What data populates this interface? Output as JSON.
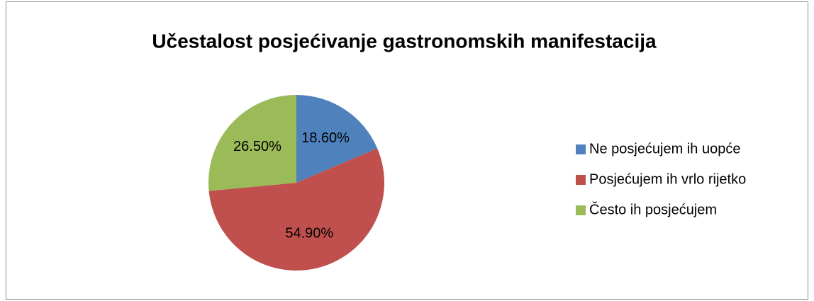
{
  "chart_data": {
    "type": "pie",
    "title": "Učestalost posjećivanje gastronomskih manifestacija",
    "categories": [
      "Ne posjećujem ih uopće",
      "Posjećujem ih vrlo rijetko",
      "Često ih posjećujem"
    ],
    "values": [
      18.6,
      54.9,
      26.5
    ],
    "value_labels": [
      "18.60%",
      "54.90%",
      "26.50%"
    ],
    "colors": [
      "#4f81bd",
      "#c0504d",
      "#9bbb59"
    ],
    "legend": "right"
  }
}
